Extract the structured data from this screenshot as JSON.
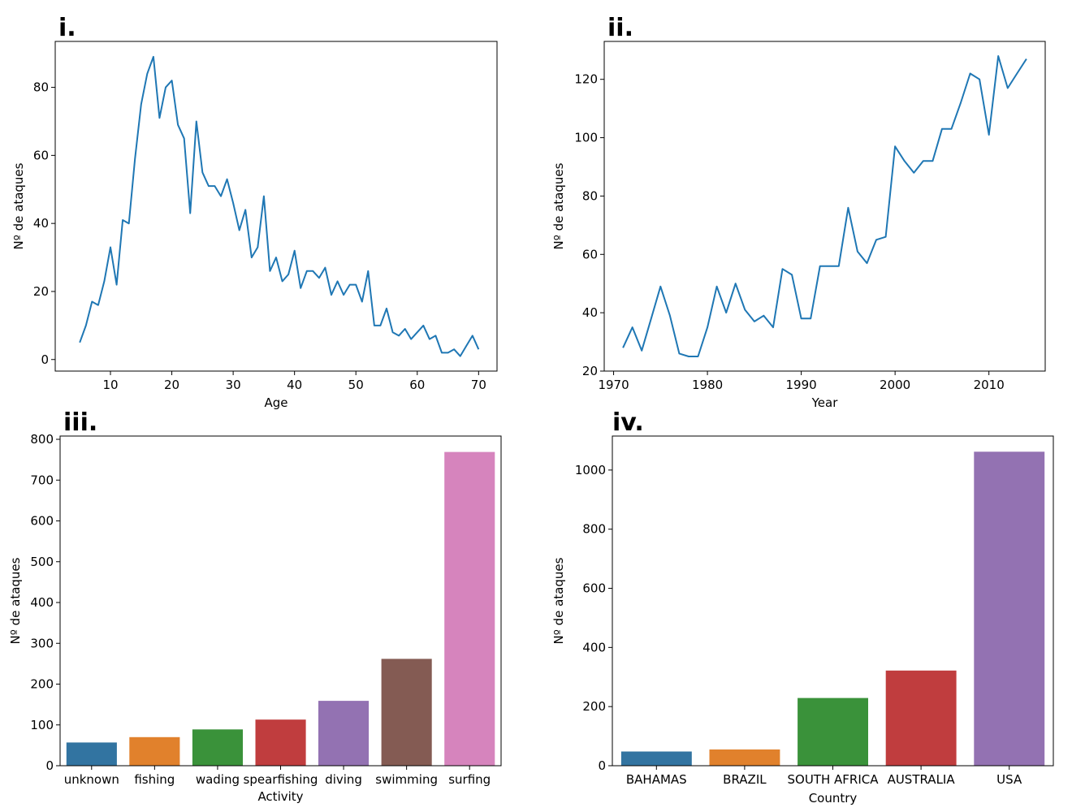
{
  "chart_data": [
    {
      "panel": "i.",
      "type": "line",
      "xlabel": "Age",
      "ylabel": "Nº de ataques",
      "xlim": [
        1,
        73
      ],
      "ylim": [
        -3.4,
        93.5
      ],
      "xticks": [
        10,
        20,
        30,
        40,
        50,
        60,
        70
      ],
      "yticks": [
        0,
        20,
        40,
        60,
        80
      ],
      "color": "#1f77b4",
      "series": [
        {
          "x": [
            5,
            6,
            7,
            8,
            9,
            10,
            11,
            12,
            13,
            14,
            15,
            16,
            17,
            18,
            19,
            20,
            21,
            22,
            23,
            24,
            25,
            26,
            27,
            28,
            29,
            30,
            31,
            32,
            33,
            34,
            35,
            36,
            37,
            38,
            39,
            40,
            41,
            42,
            43,
            44,
            45,
            46,
            47,
            48,
            49,
            50,
            51,
            52,
            53,
            54,
            55,
            56,
            57,
            58,
            59,
            60,
            61,
            62,
            63,
            64,
            65,
            66,
            67,
            68,
            69,
            70
          ],
          "y": [
            5,
            10,
            17,
            16,
            23,
            33,
            22,
            41,
            40,
            59,
            75,
            84,
            89,
            71,
            80,
            82,
            69,
            65,
            43,
            70,
            55,
            51,
            51,
            48,
            53,
            46,
            38,
            44,
            30,
            33,
            48,
            26,
            30,
            23,
            25,
            32,
            21,
            26,
            26,
            24,
            27,
            19,
            23,
            19,
            22,
            22,
            17,
            26,
            10,
            10,
            15,
            8,
            7,
            9,
            6,
            8,
            10,
            6,
            7,
            2,
            2,
            3,
            1,
            4,
            7,
            3
          ]
        }
      ]
    },
    {
      "panel": "ii.",
      "type": "line",
      "xlabel": "Year",
      "ylabel": "Nº de ataques",
      "xlim": [
        1969,
        2016
      ],
      "ylim": [
        20,
        133
      ],
      "xticks": [
        1970,
        1980,
        1990,
        2000,
        2010
      ],
      "yticks": [
        20,
        40,
        60,
        80,
        100,
        120
      ],
      "color": "#1f77b4",
      "series": [
        {
          "x": [
            1971,
            1972,
            1973,
            1974,
            1975,
            1976,
            1977,
            1978,
            1979,
            1980,
            1981,
            1982,
            1983,
            1984,
            1985,
            1986,
            1987,
            1988,
            1989,
            1990,
            1991,
            1992,
            1993,
            1994,
            1995,
            1996,
            1997,
            1998,
            1999,
            2000,
            2001,
            2002,
            2003,
            2004,
            2005,
            2006,
            2007,
            2008,
            2009,
            2010,
            2011,
            2012,
            2013,
            2014
          ],
          "y": [
            28,
            35,
            27,
            38,
            49,
            39,
            26,
            25,
            25,
            35,
            49,
            40,
            50,
            41,
            37,
            39,
            35,
            55,
            53,
            38,
            38,
            56,
            56,
            56,
            76,
            61,
            57,
            65,
            66,
            97,
            92,
            88,
            92,
            92,
            103,
            103,
            112,
            122,
            120,
            101,
            128,
            117,
            122,
            127
          ]
        }
      ]
    },
    {
      "panel": "iii.",
      "type": "bar",
      "xlabel": "Activity",
      "ylabel": "Nº de ataques",
      "ylim": [
        0,
        808
      ],
      "yticks": [
        0,
        100,
        200,
        300,
        400,
        500,
        600,
        700,
        800
      ],
      "categories": [
        "unknown",
        "fishing",
        "wading",
        "spearfishing",
        "diving",
        "swimming",
        "surfing"
      ],
      "values": [
        57,
        70,
        89,
        113,
        159,
        262,
        769
      ],
      "colors": [
        "#3274a1",
        "#e1812c",
        "#3a923a",
        "#c03d3e",
        "#9372b2",
        "#845b53",
        "#d684bd"
      ]
    },
    {
      "panel": "iv.",
      "type": "bar",
      "xlabel": "Country",
      "ylabel": "Nº de ataques",
      "ylim": [
        0,
        1115
      ],
      "yticks": [
        0,
        200,
        400,
        600,
        800,
        1000
      ],
      "categories": [
        "BAHAMAS",
        "BRAZIL",
        "SOUTH AFRICA",
        "AUSTRALIA",
        "USA"
      ],
      "values": [
        48,
        55,
        229,
        322,
        1062
      ],
      "colors": [
        "#3274a1",
        "#e1812c",
        "#3a923a",
        "#c03d3e",
        "#9372b2"
      ]
    }
  ]
}
